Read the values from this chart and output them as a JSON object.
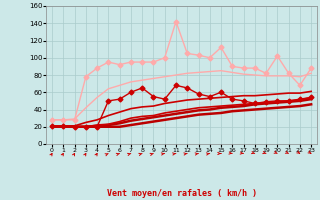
{
  "background_color": "#cce8e8",
  "grid_color": "#aacccc",
  "xlabel": "Vent moyen/en rafales ( km/h )",
  "xlim": [
    -0.5,
    23.5
  ],
  "ylim": [
    0,
    160
  ],
  "yticks": [
    0,
    20,
    40,
    60,
    80,
    100,
    120,
    140,
    160
  ],
  "xticks": [
    0,
    1,
    2,
    3,
    4,
    5,
    6,
    7,
    8,
    9,
    10,
    11,
    12,
    13,
    14,
    15,
    16,
    17,
    18,
    19,
    20,
    21,
    22,
    23
  ],
  "series": [
    {
      "x": [
        0,
        1,
        2,
        3,
        4,
        5,
        6,
        7,
        8,
        9,
        10,
        11,
        12,
        13,
        14,
        15,
        16,
        17,
        18,
        19,
        20,
        21,
        22,
        23
      ],
      "y": [
        20,
        20,
        20,
        20,
        20,
        20,
        20,
        22,
        24,
        26,
        28,
        30,
        32,
        34,
        35,
        36,
        38,
        39,
        40,
        41,
        42,
        43,
        44,
        46
      ],
      "color": "#bb0000",
      "lw": 1.8,
      "marker": null,
      "zorder": 4
    },
    {
      "x": [
        0,
        1,
        2,
        3,
        4,
        5,
        6,
        7,
        8,
        9,
        10,
        11,
        12,
        13,
        14,
        15,
        16,
        17,
        18,
        19,
        20,
        21,
        22,
        23
      ],
      "y": [
        20,
        20,
        20,
        20,
        21,
        22,
        24,
        27,
        29,
        31,
        33,
        35,
        37,
        39,
        40,
        42,
        43,
        44,
        46,
        47,
        48,
        49,
        50,
        52
      ],
      "color": "#bb0000",
      "lw": 1.8,
      "marker": null,
      "zorder": 4
    },
    {
      "x": [
        0,
        1,
        2,
        3,
        4,
        5,
        6,
        7,
        8,
        9,
        10,
        11,
        12,
        13,
        14,
        15,
        16,
        17,
        18,
        19,
        20,
        21,
        22,
        23
      ],
      "y": [
        20,
        20,
        20,
        20,
        22,
        23,
        26,
        30,
        32,
        33,
        36,
        38,
        40,
        42,
        43,
        44,
        45,
        46,
        47,
        48,
        49,
        50,
        51,
        54
      ],
      "color": "#cc0000",
      "lw": 1.2,
      "marker": null,
      "zorder": 4
    },
    {
      "x": [
        0,
        1,
        2,
        3,
        4,
        5,
        6,
        7,
        8,
        9,
        10,
        11,
        12,
        13,
        14,
        15,
        16,
        17,
        18,
        19,
        20,
        21,
        22,
        23
      ],
      "y": [
        21,
        21,
        21,
        25,
        28,
        33,
        37,
        41,
        43,
        44,
        47,
        49,
        51,
        52,
        53,
        54,
        55,
        56,
        56,
        57,
        58,
        59,
        59,
        61
      ],
      "color": "#cc0000",
      "lw": 1.2,
      "marker": null,
      "zorder": 4
    },
    {
      "x": [
        0,
        1,
        2,
        3,
        4,
        5,
        6,
        7,
        8,
        9,
        10,
        11,
        12,
        13,
        14,
        15,
        16,
        17,
        18,
        19,
        20,
        21,
        22,
        23
      ],
      "y": [
        21,
        21,
        20,
        20,
        20,
        50,
        52,
        60,
        65,
        55,
        52,
        68,
        65,
        58,
        55,
        60,
        52,
        50,
        47,
        49,
        50,
        50,
        52,
        54
      ],
      "color": "#cc0000",
      "lw": 1.0,
      "marker": "D",
      "markersize": 2.5,
      "zorder": 5
    },
    {
      "x": [
        0,
        1,
        2,
        3,
        4,
        5,
        6,
        7,
        8,
        9,
        10,
        11,
        12,
        13,
        14,
        15,
        16,
        17,
        18,
        19,
        20,
        21,
        22,
        23
      ],
      "y": [
        28,
        28,
        29,
        42,
        54,
        64,
        68,
        72,
        74,
        76,
        78,
        80,
        82,
        83,
        84,
        85,
        83,
        81,
        80,
        79,
        79,
        79,
        78,
        82
      ],
      "color": "#ffaaaa",
      "lw": 1.0,
      "marker": null,
      "zorder": 2
    },
    {
      "x": [
        0,
        1,
        2,
        3,
        4,
        5,
        6,
        7,
        8,
        9,
        10,
        11,
        12,
        13,
        14,
        15,
        16,
        17,
        18,
        19,
        20,
        21,
        22,
        23
      ],
      "y": [
        28,
        28,
        28,
        78,
        88,
        95,
        92,
        95,
        95,
        95,
        100,
        142,
        105,
        103,
        100,
        112,
        90,
        88,
        88,
        82,
        102,
        82,
        68,
        88
      ],
      "color": "#ffaaaa",
      "lw": 1.0,
      "marker": "D",
      "markersize": 2.5,
      "zorder": 3
    }
  ],
  "wind_arrow_angles": [
    45,
    45,
    45,
    45,
    45,
    15,
    10,
    10,
    10,
    10,
    5,
    5,
    5,
    5,
    5,
    0,
    -5,
    -5,
    -10,
    -10,
    -15,
    -15,
    -20,
    -20
  ],
  "arrow_color": "#cc0000",
  "xlabel_color": "#cc0000",
  "xlabel_fontsize": 6,
  "tick_fontsize": 4.5,
  "ytick_fontsize": 5
}
